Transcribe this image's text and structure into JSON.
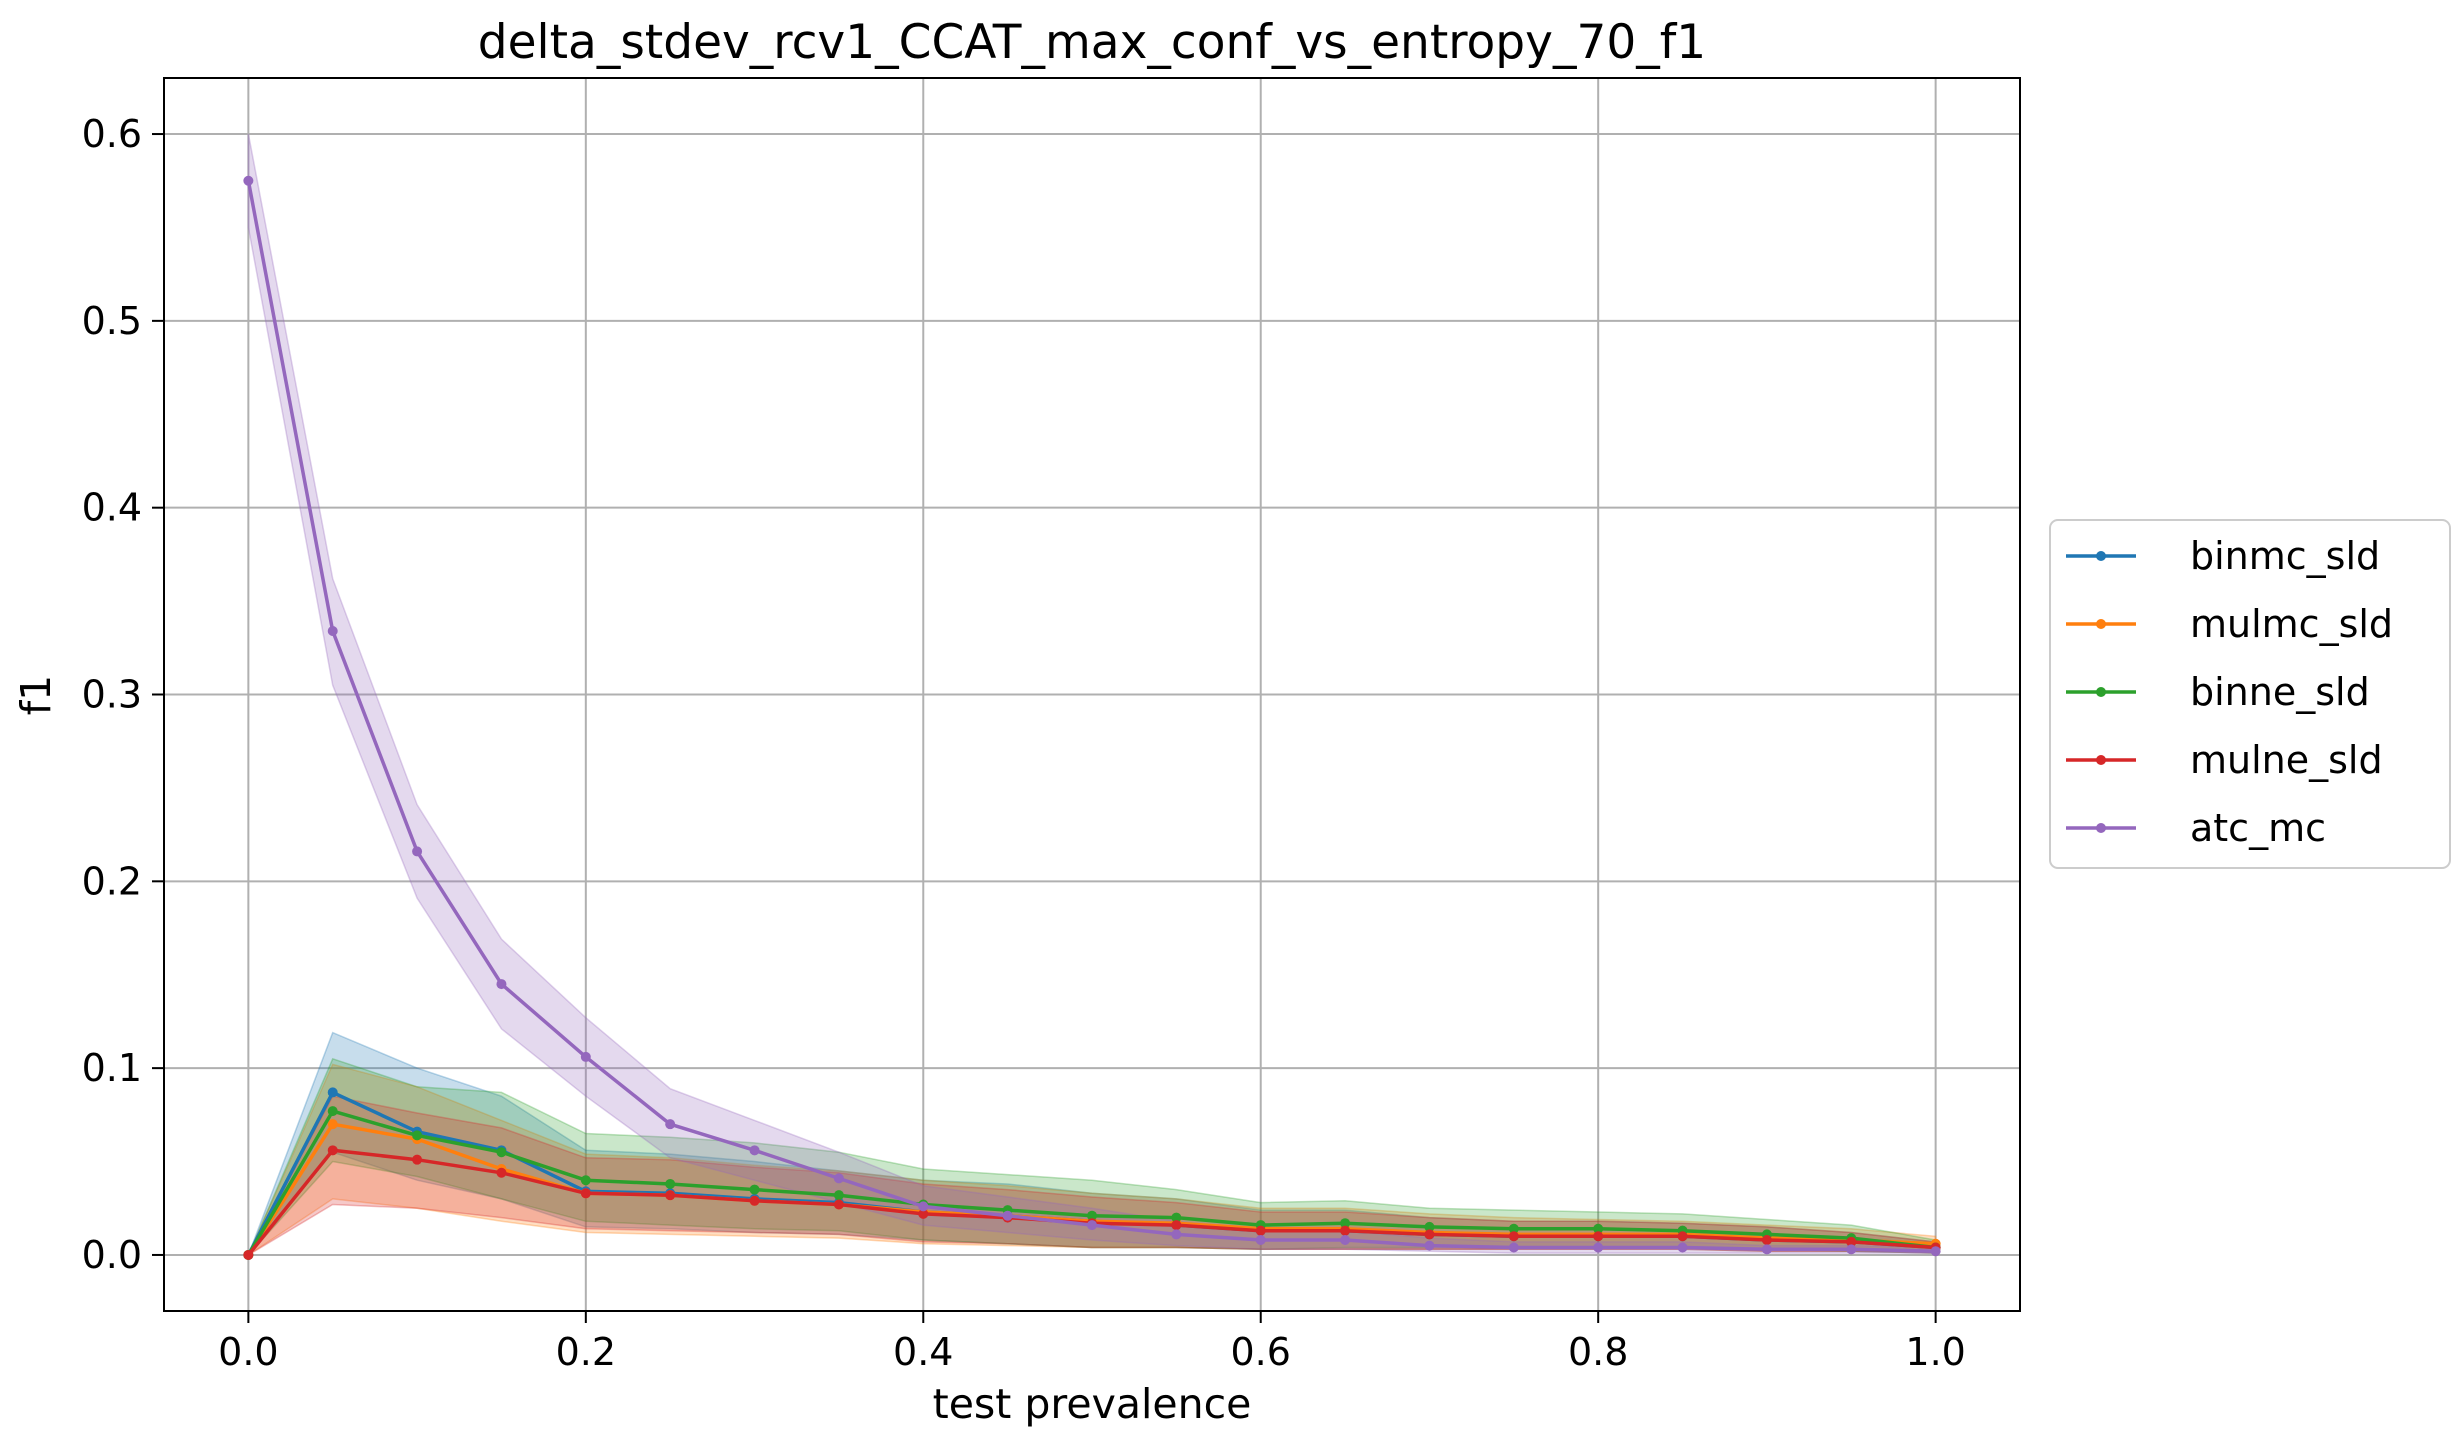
{
  "chart_data": {
    "type": "line",
    "title": "delta_stdev_rcv1_CCAT_max_conf_vs_entropy_70_f1",
    "xlabel": "test prevalence",
    "ylabel": "f1",
    "xlim": [
      -0.05,
      1.05
    ],
    "ylim": [
      -0.03,
      0.63
    ],
    "xticks": [
      0.0,
      0.2,
      0.4,
      0.6,
      0.8,
      1.0
    ],
    "xtick_labels": [
      "0.0",
      "0.2",
      "0.4",
      "0.6",
      "0.8",
      "1.0"
    ],
    "yticks": [
      0.0,
      0.1,
      0.2,
      0.3,
      0.4,
      0.5,
      0.6
    ],
    "ytick_labels": [
      "0.0",
      "0.1",
      "0.2",
      "0.3",
      "0.4",
      "0.5",
      "0.6"
    ],
    "grid": true,
    "legend_position": "center-right-outside",
    "x": [
      0.0,
      0.05,
      0.1,
      0.15,
      0.2,
      0.25,
      0.3,
      0.35,
      0.4,
      0.45,
      0.5,
      0.55,
      0.6,
      0.65,
      0.7,
      0.75,
      0.8,
      0.85,
      0.9,
      0.95,
      1.0
    ],
    "series": [
      {
        "name": "binmc_sld",
        "color": "#1f77b4",
        "values": [
          0.0,
          0.087,
          0.066,
          0.056,
          0.034,
          0.033,
          0.03,
          0.028,
          0.023,
          0.021,
          0.018,
          0.016,
          0.013,
          0.013,
          0.011,
          0.01,
          0.01,
          0.01,
          0.008,
          0.007,
          0.004
        ],
        "lower": [
          0.0,
          0.055,
          0.04,
          0.03,
          0.015,
          0.014,
          0.012,
          0.011,
          0.008,
          0.006,
          0.004,
          0.004,
          0.003,
          0.003,
          0.003,
          0.003,
          0.003,
          0.003,
          0.002,
          0.002,
          0.001
        ],
        "upper": [
          0.0,
          0.119,
          0.1,
          0.085,
          0.056,
          0.054,
          0.05,
          0.045,
          0.04,
          0.038,
          0.033,
          0.03,
          0.024,
          0.024,
          0.02,
          0.018,
          0.018,
          0.017,
          0.015,
          0.012,
          0.007
        ]
      },
      {
        "name": "mulmc_sld",
        "color": "#ff7f0e",
        "values": [
          0.0,
          0.07,
          0.062,
          0.046,
          0.033,
          0.032,
          0.029,
          0.027,
          0.023,
          0.021,
          0.018,
          0.017,
          0.014,
          0.014,
          0.012,
          0.011,
          0.011,
          0.011,
          0.009,
          0.008,
          0.006
        ],
        "lower": [
          0.0,
          0.03,
          0.025,
          0.018,
          0.012,
          0.011,
          0.01,
          0.009,
          0.006,
          0.005,
          0.004,
          0.004,
          0.003,
          0.003,
          0.003,
          0.003,
          0.003,
          0.003,
          0.002,
          0.002,
          0.002
        ],
        "upper": [
          0.0,
          0.102,
          0.09,
          0.072,
          0.054,
          0.052,
          0.048,
          0.045,
          0.04,
          0.037,
          0.033,
          0.03,
          0.025,
          0.025,
          0.022,
          0.02,
          0.019,
          0.018,
          0.016,
          0.014,
          0.01
        ]
      },
      {
        "name": "binne_sld",
        "color": "#2ca02c",
        "values": [
          0.0,
          0.077,
          0.064,
          0.055,
          0.04,
          0.038,
          0.035,
          0.032,
          0.027,
          0.024,
          0.021,
          0.02,
          0.016,
          0.017,
          0.015,
          0.014,
          0.014,
          0.013,
          0.011,
          0.009,
          0.004
        ],
        "lower": [
          0.0,
          0.05,
          0.042,
          0.03,
          0.018,
          0.016,
          0.014,
          0.013,
          0.008,
          0.006,
          0.004,
          0.004,
          0.003,
          0.004,
          0.004,
          0.004,
          0.004,
          0.004,
          0.003,
          0.002,
          0.001
        ],
        "upper": [
          0.0,
          0.105,
          0.09,
          0.087,
          0.065,
          0.063,
          0.06,
          0.055,
          0.046,
          0.043,
          0.04,
          0.035,
          0.028,
          0.029,
          0.025,
          0.024,
          0.023,
          0.022,
          0.019,
          0.016,
          0.008
        ]
      },
      {
        "name": "mulne_sld",
        "color": "#d62728",
        "values": [
          0.0,
          0.056,
          0.051,
          0.044,
          0.033,
          0.032,
          0.029,
          0.027,
          0.022,
          0.02,
          0.017,
          0.016,
          0.013,
          0.013,
          0.011,
          0.01,
          0.01,
          0.01,
          0.008,
          0.007,
          0.004
        ],
        "lower": [
          0.0,
          0.027,
          0.025,
          0.02,
          0.014,
          0.013,
          0.012,
          0.011,
          0.007,
          0.006,
          0.004,
          0.004,
          0.003,
          0.003,
          0.003,
          0.003,
          0.003,
          0.003,
          0.002,
          0.002,
          0.001
        ],
        "upper": [
          0.0,
          0.085,
          0.076,
          0.068,
          0.052,
          0.051,
          0.047,
          0.044,
          0.038,
          0.035,
          0.031,
          0.028,
          0.023,
          0.023,
          0.02,
          0.018,
          0.018,
          0.017,
          0.015,
          0.012,
          0.007
        ]
      },
      {
        "name": "atc_mc",
        "color": "#9467bd",
        "values": [
          0.575,
          0.334,
          0.216,
          0.145,
          0.106,
          0.07,
          0.056,
          0.041,
          0.026,
          0.021,
          0.016,
          0.011,
          0.008,
          0.008,
          0.005,
          0.004,
          0.004,
          0.004,
          0.003,
          0.003,
          0.002
        ],
        "lower": [
          0.55,
          0.305,
          0.191,
          0.121,
          0.085,
          0.052,
          0.04,
          0.028,
          0.016,
          0.012,
          0.008,
          0.005,
          0.003,
          0.003,
          0.002,
          0.001,
          0.001,
          0.001,
          0.001,
          0.001,
          0.001
        ],
        "upper": [
          0.6,
          0.362,
          0.241,
          0.169,
          0.127,
          0.089,
          0.072,
          0.055,
          0.037,
          0.031,
          0.025,
          0.018,
          0.013,
          0.013,
          0.009,
          0.007,
          0.007,
          0.007,
          0.005,
          0.005,
          0.004
        ]
      }
    ]
  }
}
